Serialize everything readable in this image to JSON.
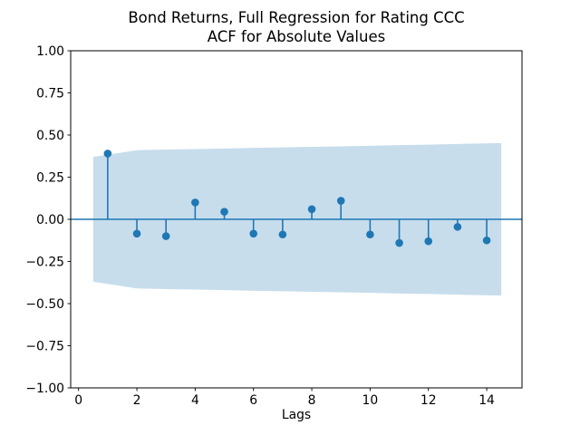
{
  "chart_data": {
    "type": "stem",
    "title": "Bond Returns, Full Regression for Rating CCC\nACF for Absolute Values",
    "title_line1": "Bond Returns, Full Regression for Rating CCC",
    "title_line2": "ACF for Absolute Values",
    "xlabel": "Lags",
    "ylabel": "",
    "lags": [
      1,
      2,
      3,
      4,
      5,
      6,
      7,
      8,
      9,
      10,
      11,
      12,
      13,
      14
    ],
    "acf_values": [
      0.39,
      -0.085,
      -0.1,
      0.1,
      0.045,
      -0.085,
      -0.09,
      0.06,
      0.11,
      -0.09,
      -0.14,
      -0.13,
      -0.045,
      -0.125
    ],
    "conf_band": {
      "x": [
        0.5,
        2,
        3,
        4,
        5,
        6,
        7,
        8,
        9,
        10,
        11,
        12,
        13,
        14.5
      ],
      "upper": [
        0.37,
        0.41,
        0.414,
        0.417,
        0.42,
        0.424,
        0.427,
        0.43,
        0.433,
        0.436,
        0.44,
        0.443,
        0.447,
        0.452
      ],
      "lower": [
        -0.37,
        -0.41,
        -0.414,
        -0.417,
        -0.42,
        -0.424,
        -0.427,
        -0.43,
        -0.433,
        -0.436,
        -0.44,
        -0.443,
        -0.447,
        -0.452
      ]
    },
    "zero_line": true,
    "grid": false,
    "legend": null,
    "xlim": [
      -0.27,
      15.21
    ],
    "ylim": [
      -1.0,
      1.0
    ],
    "xticks": [
      0,
      2,
      4,
      6,
      8,
      10,
      12,
      14
    ],
    "xtick_labels": [
      "0",
      "2",
      "4",
      "6",
      "8",
      "10",
      "12",
      "14"
    ],
    "yticks": [
      1.0,
      0.75,
      0.5,
      0.25,
      0.0,
      -0.25,
      -0.5,
      -0.75,
      -1.0
    ],
    "ytick_labels": [
      "1.00",
      "0.75",
      "0.50",
      "0.25",
      "0.00",
      "−0.25",
      "−0.50",
      "−0.75",
      "−1.00"
    ],
    "colors": {
      "line": "#1f77b4",
      "band": "rgba(31,119,180,0.25)",
      "text": "#000000",
      "spine": "#000000"
    }
  }
}
